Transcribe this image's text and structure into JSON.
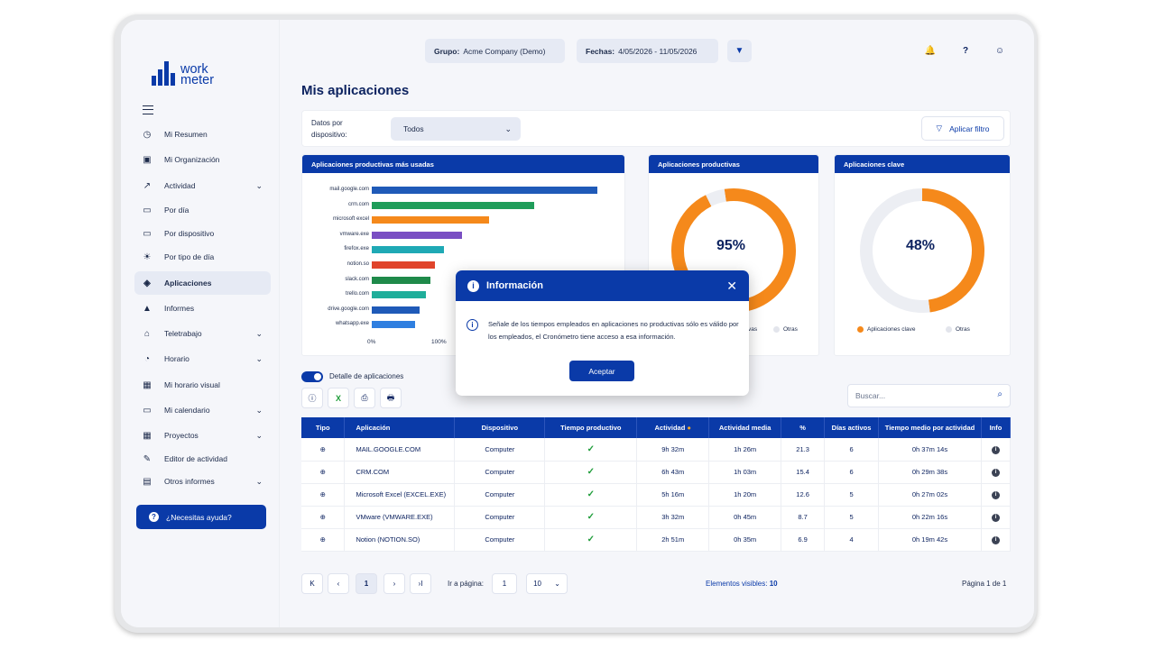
{
  "brand": {
    "line1": "work",
    "line2": "meter",
    "accent": "#0a3aa8"
  },
  "sidebar": {
    "items": [
      {
        "label": "Mi Resumen",
        "icon": "gauge-icon"
      },
      {
        "label": "Mi Organización",
        "icon": "calendar-org-icon"
      },
      {
        "label": "Actividad",
        "icon": "trend-icon",
        "expandable": true
      },
      {
        "label": "Por día",
        "icon": "calendar-icon"
      },
      {
        "label": "Por dispositivo",
        "icon": "monitor-icon"
      },
      {
        "label": "Por tipo de día",
        "icon": "sun-icon"
      },
      {
        "label": "Aplicaciones",
        "icon": "layers-icon",
        "active": true
      },
      {
        "label": "Informes",
        "icon": "chart-triangle-icon"
      },
      {
        "label": "Teletrabajo",
        "icon": "home-icon",
        "expandable": true
      },
      {
        "label": "Horario",
        "icon": "clock-icon",
        "expandable": true
      },
      {
        "label": "Mi horario visual",
        "icon": "schedule-icon"
      },
      {
        "label": "Mi calendario",
        "icon": "calendar-icon",
        "expandable": true
      },
      {
        "label": "Proyectos",
        "icon": "grid-icon",
        "expandable": true
      },
      {
        "label": "Editor de actividad",
        "icon": "pencil-icon"
      },
      {
        "label": "Otros informes",
        "icon": "report-icon",
        "expandable": true
      }
    ],
    "help_label": "¿Necesitas ayuda?"
  },
  "header": {
    "group_label": "Grupo:",
    "group_value": "Acme Company (Demo)",
    "dates_label": "Fechas:",
    "dates_value": "4/05/2026 - 11/05/2026"
  },
  "page": {
    "title": "Mis aplicaciones",
    "filter_label": "Datos por dispositivo:",
    "filter_value": "Todos",
    "apply_filter": "Aplicar filtro"
  },
  "cards": {
    "bars_title": "Aplicaciones productivas más usadas",
    "productive_title": "Aplicaciones productivas",
    "key_title": "Aplicaciones clave",
    "productive_legend": [
      "Otras"
    ],
    "productive_legend_partial": "vas",
    "key_legend": [
      "Aplicaciones clave",
      "Otras"
    ]
  },
  "chart_data": [
    {
      "type": "bar",
      "orientation": "horizontal",
      "title": "Aplicaciones productivas más usadas",
      "categories": [
        "mail.google.com",
        "crm.com",
        "microsoft excel",
        "vmware.exe",
        "firefox.exe",
        "notion.so",
        "slack.com",
        "trello.com",
        "drive.google.com",
        "whatsapp.exe"
      ],
      "values": [
        100,
        72,
        52,
        40,
        32,
        28,
        26,
        24,
        21,
        19
      ],
      "colors": [
        "#1f5ab8",
        "#1f9d5a",
        "#f5891b",
        "#7a4fc3",
        "#1fa9b5",
        "#e0442b",
        "#1f8a4a",
        "#1fae9a",
        "#1f5ab8",
        "#2f7fe0"
      ],
      "xticks": [
        "0%",
        "100%"
      ],
      "xlim": [
        0,
        100
      ]
    },
    {
      "type": "pie",
      "title": "Aplicaciones productivas",
      "center_label": "95%",
      "values": [
        95,
        5
      ],
      "colors": [
        "#f5891b",
        "#eceef3"
      ]
    },
    {
      "type": "pie",
      "title": "Aplicaciones clave",
      "center_label": "48%",
      "values": [
        48,
        52
      ],
      "colors": [
        "#f5891b",
        "#eceef3"
      ]
    }
  ],
  "toolbar": {
    "detail_toggle": "Detalle de aplicaciones",
    "search_placeholder": "Buscar..."
  },
  "table": {
    "headers": [
      "Tipo",
      "Aplicación",
      "Dispositivo",
      "Tiempo productivo",
      "Actividad",
      "Actividad media",
      "%",
      "Días activos",
      "Tiempo medio por actividad",
      "Info"
    ],
    "rows": [
      {
        "app": "MAIL.GOOGLE.COM",
        "device": "Computer",
        "activity": "9h 32m",
        "avg": "1h 26m",
        "pct": "21.3",
        "days": "6",
        "avg_time": "0h 37m 14s"
      },
      {
        "app": "CRM.COM",
        "device": "Computer",
        "activity": "6h 43m",
        "avg": "1h 03m",
        "pct": "15.4",
        "days": "6",
        "avg_time": "0h 29m 38s"
      },
      {
        "app": "Microsoft Excel (EXCEL.EXE)",
        "device": "Computer",
        "activity": "5h 16m",
        "avg": "1h 20m",
        "pct": "12.6",
        "days": "5",
        "avg_time": "0h 27m 02s"
      },
      {
        "app": "VMware (VMWARE.EXE)",
        "device": "Computer",
        "activity": "3h 32m",
        "avg": "0h 45m",
        "pct": "8.7",
        "days": "5",
        "avg_time": "0h 22m 16s"
      },
      {
        "app": "Notion (NOTION.SO)",
        "device": "Computer",
        "activity": "2h 51m",
        "avg": "0h 35m",
        "pct": "6.9",
        "days": "4",
        "avg_time": "0h 19m 42s"
      }
    ]
  },
  "pagination": {
    "current": "1",
    "goto_label": "Ir a página:",
    "goto_value": "1",
    "page_size": "10",
    "visible_label": "Elementos visibles:",
    "visible_count": "10",
    "page_info": "Página 1 de 1"
  },
  "modal": {
    "title": "Información",
    "body": "Señale de los tiempos empleados en aplicaciones no productivas sólo es válido por los empleados, el Cronómetro tiene acceso a esa información.",
    "button": "Aceptar"
  }
}
